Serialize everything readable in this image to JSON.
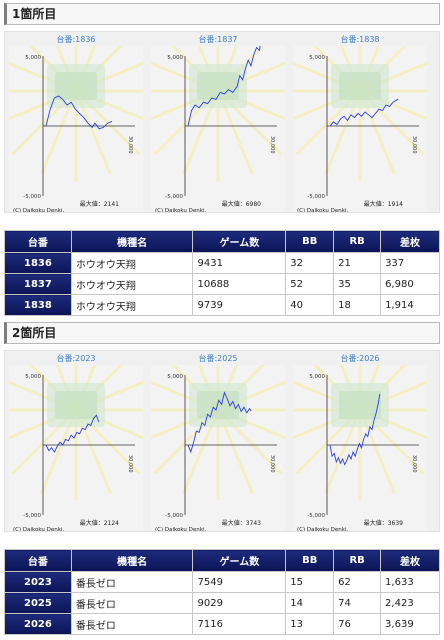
{
  "sections": [
    {
      "title": "1箇所目",
      "graphs": [
        {
          "label": "台番:1836",
          "max_text": "最大値：2141",
          "credit": "(C) Daikoku Denki.",
          "y_top": "5,000",
          "y_bottom": "-5,000",
          "x_label": "30,000",
          "series": [
            [
              0,
              0
            ],
            [
              600,
              1200
            ],
            [
              1200,
              2000
            ],
            [
              1800,
              2140
            ],
            [
              2400,
              1900
            ],
            [
              3000,
              1500
            ],
            [
              3600,
              1700
            ],
            [
              4200,
              1200
            ],
            [
              4800,
              900
            ],
            [
              5400,
              600
            ],
            [
              6000,
              200
            ],
            [
              6600,
              -100
            ],
            [
              7000,
              200
            ],
            [
              7600,
              -200
            ],
            [
              8200,
              -100
            ],
            [
              8800,
              200
            ],
            [
              9431,
              337
            ]
          ]
        },
        {
          "label": "台番:1837",
          "max_text": "最大値：6980",
          "credit": "(C) Daikoku Denki.",
          "y_top": "5,000",
          "y_bottom": "-5,000",
          "x_label": "30,000",
          "series": [
            [
              0,
              0
            ],
            [
              500,
              1100
            ],
            [
              1000,
              1500
            ],
            [
              1600,
              1300
            ],
            [
              2200,
              1700
            ],
            [
              2800,
              1600
            ],
            [
              3400,
              2000
            ],
            [
              4000,
              1900
            ],
            [
              4600,
              2400
            ],
            [
              5200,
              2300
            ],
            [
              5800,
              2600
            ],
            [
              6400,
              2400
            ],
            [
              7000,
              2800
            ],
            [
              7400,
              3600
            ],
            [
              7800,
              3300
            ],
            [
              8200,
              4100
            ],
            [
              8600,
              4700
            ],
            [
              9000,
              4300
            ],
            [
              9400,
              5100
            ],
            [
              9800,
              5600
            ],
            [
              10200,
              5400
            ],
            [
              10688,
              6980
            ]
          ]
        },
        {
          "label": "台番:1838",
          "max_text": "最大値：1914",
          "credit": "(C) Daikoku Denki.",
          "y_top": "5,000",
          "y_bottom": "-5,000",
          "x_label": "30,000",
          "series": [
            [
              0,
              0
            ],
            [
              500,
              300
            ],
            [
              1000,
              100
            ],
            [
              1500,
              500
            ],
            [
              2000,
              700
            ],
            [
              2500,
              400
            ],
            [
              3000,
              800
            ],
            [
              3500,
              600
            ],
            [
              4000,
              900
            ],
            [
              4500,
              700
            ],
            [
              5000,
              1000
            ],
            [
              5500,
              800
            ],
            [
              6000,
              600
            ],
            [
              6500,
              900
            ],
            [
              7000,
              1200
            ],
            [
              7500,
              1100
            ],
            [
              8000,
              1500
            ],
            [
              8500,
              1400
            ],
            [
              9000,
              1700
            ],
            [
              9739,
              1914
            ]
          ]
        }
      ],
      "table": {
        "headers": [
          "台番",
          "機種名",
          "ゲーム数",
          "BB",
          "RB",
          "差枚"
        ],
        "rows": [
          [
            "1836",
            "ホウオウ天翔",
            "9431",
            "32",
            "21",
            "337"
          ],
          [
            "1837",
            "ホウオウ天翔",
            "10688",
            "52",
            "35",
            "6,980"
          ],
          [
            "1838",
            "ホウオウ天翔",
            "9739",
            "40",
            "18",
            "1,914"
          ]
        ]
      }
    },
    {
      "title": "2箇所目",
      "graphs": [
        {
          "label": "台番:2023",
          "max_text": "最大値：2124",
          "credit": "(C) Daikoku Denki.",
          "y_top": "5,000",
          "y_bottom": "-5,000",
          "x_label": "30,000",
          "series": [
            [
              0,
              0
            ],
            [
              400,
              -400
            ],
            [
              800,
              -200
            ],
            [
              1200,
              -500
            ],
            [
              1600,
              -100
            ],
            [
              2000,
              200
            ],
            [
              2400,
              0
            ],
            [
              2800,
              400
            ],
            [
              3200,
              300
            ],
            [
              3600,
              700
            ],
            [
              4000,
              500
            ],
            [
              4400,
              900
            ],
            [
              4800,
              800
            ],
            [
              5200,
              1200
            ],
            [
              5600,
              1100
            ],
            [
              6000,
              1500
            ],
            [
              6400,
              1400
            ],
            [
              6800,
              1900
            ],
            [
              7200,
              2124
            ],
            [
              7549,
              1633
            ]
          ]
        },
        {
          "label": "台番:2025",
          "max_text": "最大値：3743",
          "credit": "(C) Daikoku Denki.",
          "y_top": "5,000",
          "y_bottom": "-5,000",
          "x_label": "30,000",
          "series": [
            [
              0,
              0
            ],
            [
              400,
              -500
            ],
            [
              800,
              200
            ],
            [
              1200,
              1000
            ],
            [
              1600,
              900
            ],
            [
              2000,
              1600
            ],
            [
              2400,
              1400
            ],
            [
              2800,
              2200
            ],
            [
              3200,
              2000
            ],
            [
              3600,
              2700
            ],
            [
              4000,
              2500
            ],
            [
              4400,
              3200
            ],
            [
              4800,
              2900
            ],
            [
              5200,
              3743
            ],
            [
              5600,
              3300
            ],
            [
              6000,
              2800
            ],
            [
              6400,
              3100
            ],
            [
              6800,
              2600
            ],
            [
              7200,
              2900
            ],
            [
              7600,
              2400
            ],
            [
              8000,
              2700
            ],
            [
              8400,
              2300
            ],
            [
              8800,
              2600
            ],
            [
              9029,
              2423
            ]
          ]
        },
        {
          "label": "台番:2026",
          "max_text": "最大値：3639",
          "credit": "(C) Daikoku Denki.",
          "y_top": "5,000",
          "y_bottom": "-5,000",
          "x_label": "30,000",
          "series": [
            [
              0,
              0
            ],
            [
              300,
              -800
            ],
            [
              600,
              -600
            ],
            [
              900,
              -1200
            ],
            [
              1200,
              -900
            ],
            [
              1500,
              -1300
            ],
            [
              1800,
              -1000
            ],
            [
              2100,
              -1400
            ],
            [
              2400,
              -1100
            ],
            [
              2700,
              -700
            ],
            [
              3000,
              -1000
            ],
            [
              3300,
              -500
            ],
            [
              3600,
              -800
            ],
            [
              3900,
              -300
            ],
            [
              4200,
              100
            ],
            [
              4500,
              -200
            ],
            [
              4800,
              400
            ],
            [
              5100,
              800
            ],
            [
              5400,
              600
            ],
            [
              5700,
              1300
            ],
            [
              6000,
              1100
            ],
            [
              6300,
              1800
            ],
            [
              6600,
              2300
            ],
            [
              6900,
              3000
            ],
            [
              7116,
              3639
            ]
          ]
        }
      ],
      "table": {
        "headers": [
          "台番",
          "機種名",
          "ゲーム数",
          "BB",
          "RB",
          "差枚"
        ],
        "rows": [
          [
            "2023",
            "番長ゼロ",
            "7549",
            "15",
            "62",
            "1,633"
          ],
          [
            "2025",
            "番長ゼロ",
            "9029",
            "14",
            "74",
            "2,423"
          ],
          [
            "2026",
            "番長ゼロ",
            "7116",
            "13",
            "76",
            "3,639"
          ]
        ]
      }
    }
  ],
  "colors": {
    "header_navy": "#0c1456",
    "graph_label_blue": "#3a7fc0",
    "line_blue": "#2b3fe0"
  }
}
